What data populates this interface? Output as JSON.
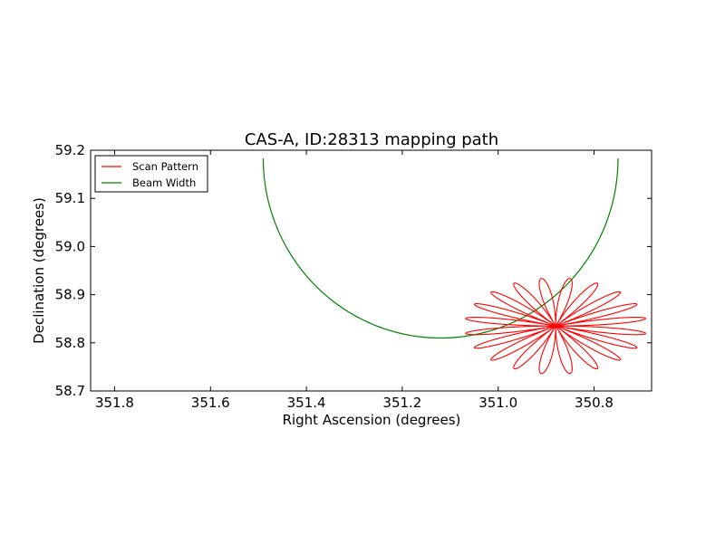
{
  "chart_data": {
    "type": "line",
    "title": "CAS-A, ID:28313 mapping path",
    "xlabel": "Right Ascension (degrees)",
    "ylabel": "Declination (degrees)",
    "xlim": [
      351.85,
      350.68
    ],
    "ylim": [
      58.7,
      59.2
    ],
    "x_inverted": true,
    "xticks": [
      351.8,
      351.6,
      351.4,
      351.2,
      351.0,
      350.8
    ],
    "xtick_labels": [
      "351.8",
      "351.6",
      "351.4",
      "351.2",
      "351.0",
      "350.8"
    ],
    "yticks": [
      58.7,
      58.8,
      58.9,
      59.0,
      59.1,
      59.2
    ],
    "ytick_labels": [
      "58.7",
      "58.8",
      "58.9",
      "59.0",
      "59.1",
      "59.2"
    ],
    "grid": false,
    "legend_position": "upper-left",
    "series": [
      {
        "name": "Scan Pattern",
        "color": "#ff0000",
        "pattern": {
          "shape": "rosette",
          "center": [
            350.88,
            58.835
          ],
          "petals": 20,
          "radius_ra": 0.19,
          "radius_dec": 0.1
        }
      },
      {
        "name": "Beam Width",
        "color": "#008000",
        "circle": {
          "center": [
            351.12,
            59.183
          ],
          "radius_ra": 0.37,
          "radius_dec": 0.373,
          "theta_range_deg": [
            180,
            360
          ]
        }
      }
    ]
  }
}
